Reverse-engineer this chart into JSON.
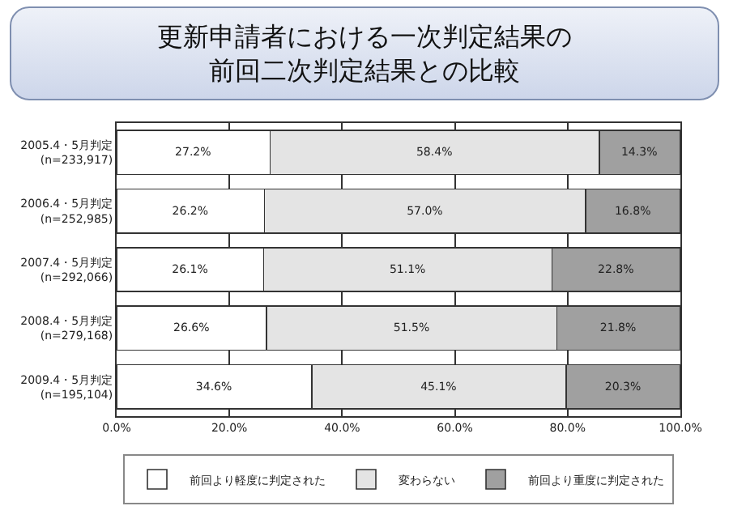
{
  "chart_data": {
    "type": "bar",
    "orientation": "horizontal",
    "stacked": true,
    "title": "更新申請者における一次判定結果の前回二次判定結果との比較",
    "categories": [
      "2005.4・5月判定\n(n=233,917)",
      "2006.4・5月判定\n(n=252,985)",
      "2007.4・5月判定\n(n=292,066)",
      "2008.4・5月判定\n(n=279,168)",
      "2009.4・5月判定\n(n=195,104)"
    ],
    "series": [
      {
        "name": "前回より軽度に判定された",
        "color": "#ffffff",
        "values": [
          27.2,
          26.2,
          26.1,
          26.6,
          34.6
        ],
        "value_labels": [
          "27.2%",
          "26.2%",
          "26.1%",
          "26.6%",
          "34.6%"
        ]
      },
      {
        "name": "変わらない",
        "color": "#e4e4e4",
        "values": [
          58.4,
          57.0,
          51.1,
          51.5,
          45.1
        ],
        "value_labels": [
          "58.4%",
          "57.0%",
          "51.1%",
          "51.5%",
          "45.1%"
        ]
      },
      {
        "name": "前回より重度に判定された",
        "color": "#a0a0a0",
        "values": [
          14.3,
          16.8,
          22.8,
          21.8,
          20.3
        ],
        "value_labels": [
          "14.3%",
          "16.8%",
          "22.8%",
          "21.8%",
          "20.3%"
        ]
      }
    ],
    "xlim": [
      0,
      100
    ],
    "xticks": [
      {
        "value": 0,
        "label": "0.0%"
      },
      {
        "value": 20,
        "label": "20.0%"
      },
      {
        "value": 40,
        "label": "40.0%"
      },
      {
        "value": 60,
        "label": "60.0%"
      },
      {
        "value": 80,
        "label": "80.0%"
      },
      {
        "value": 100,
        "label": "100.0%"
      }
    ],
    "grid": "x",
    "legend": "bottom"
  }
}
